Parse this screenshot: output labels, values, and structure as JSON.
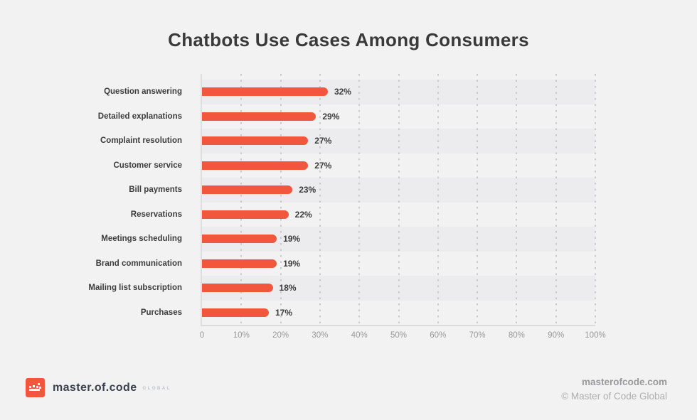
{
  "chart_data": {
    "type": "bar",
    "orientation": "horizontal",
    "title": "Chatbots Use Cases Among Consumers",
    "categories": [
      "Question answering",
      "Detailed explanations",
      "Complaint resolution",
      "Customer service",
      "Bill payments",
      "Reservations",
      "Meetings scheduling",
      "Brand communication",
      "Mailing list subscription",
      "Purchases"
    ],
    "values": [
      32,
      29,
      27,
      27,
      23,
      22,
      19,
      19,
      18,
      17
    ],
    "value_labels": [
      "32%",
      "29%",
      "27%",
      "27%",
      "23%",
      "22%",
      "19%",
      "19%",
      "18%",
      "17%"
    ],
    "x_ticks": [
      "0",
      "10%",
      "20%",
      "30%",
      "40%",
      "50%",
      "60%",
      "70%",
      "80%",
      "90%",
      "100%"
    ],
    "xlim": [
      0,
      100
    ],
    "xlabel": "",
    "ylabel": "",
    "legend": "none",
    "grid": "vertical-dotted",
    "bar_color": "#F0573C",
    "row_stripe_color": "#ECECEE"
  },
  "footer": {
    "logo": {
      "icon": "pixel-crown-icon",
      "brand": "master.of.code",
      "suffix": "GLOBAL",
      "icon_color": "#F0573C"
    },
    "website": "masterofcode.com",
    "copyright": "© Master of Code Global"
  },
  "colors": {
    "background": "#F2F2F2",
    "title_text": "#3A3A3A",
    "tick_text": "#98989B",
    "label_text": "#3C3C3C"
  }
}
